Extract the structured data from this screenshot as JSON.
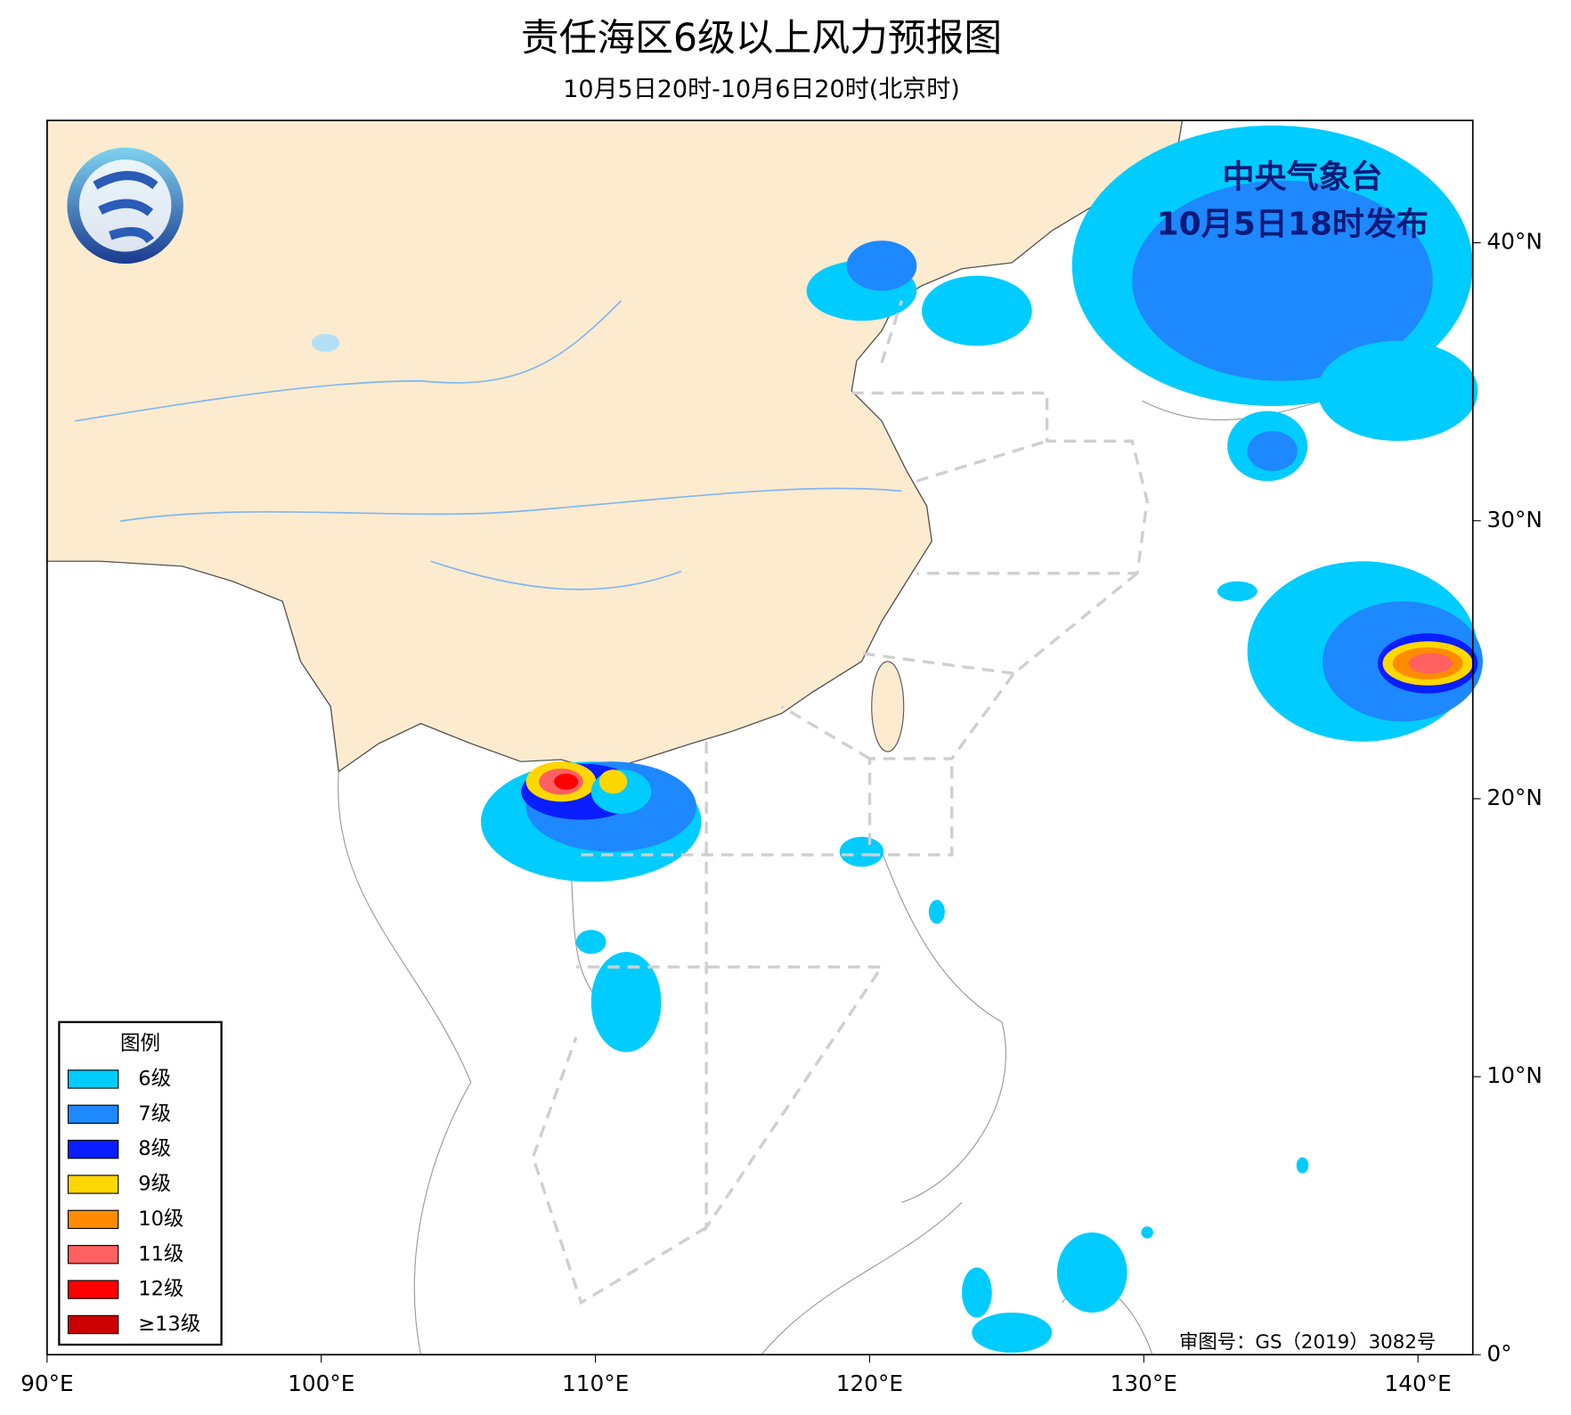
{
  "header": {
    "title": "责任海区6级以上风力预报图",
    "subtitle": "10月5日20时-10月6日20时(北京时)"
  },
  "issuer": {
    "name": "中央气象台",
    "time": "10月5日18时发布"
  },
  "map": {
    "xlim": [
      90,
      142
    ],
    "ylim": [
      0,
      44.4
    ],
    "xticks": [
      {
        "value": 90,
        "label": "90°E"
      },
      {
        "value": 100,
        "label": "100°E"
      },
      {
        "value": 110,
        "label": "110°E"
      },
      {
        "value": 120,
        "label": "120°E"
      },
      {
        "value": 130,
        "label": "130°E"
      },
      {
        "value": 140,
        "label": "140°E"
      }
    ],
    "yticks": [
      {
        "value": 0,
        "label": "0°"
      },
      {
        "value": 10,
        "label": "10°N"
      },
      {
        "value": 20,
        "label": "20°N"
      },
      {
        "value": 30,
        "label": "30°N"
      },
      {
        "value": 40,
        "label": "40°N"
      }
    ]
  },
  "legend": {
    "title": "图例",
    "items": [
      {
        "label": "6级",
        "color": "#00ccff"
      },
      {
        "label": "7级",
        "color": "#1e88ff"
      },
      {
        "label": "8级",
        "color": "#0a1eff"
      },
      {
        "label": "9级",
        "color": "#ffd700"
      },
      {
        "label": "10级",
        "color": "#ff8c00"
      },
      {
        "label": "11级",
        "color": "#ff6060"
      },
      {
        "label": "12级",
        "color": "#ff0000"
      },
      {
        "label": "≥13级",
        "color": "#cc0000"
      }
    ]
  },
  "approval": "审图号：GS（2019）3082号"
}
